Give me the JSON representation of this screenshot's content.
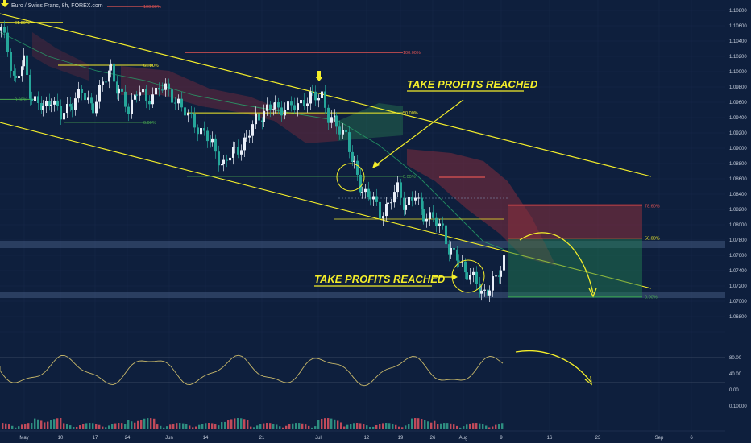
{
  "chart_data": {
    "type": "candlestick",
    "title": "Euro / Swiss Franc, 8h, FOREX.com",
    "y_ticks": [
      "1.10800",
      "1.10600",
      "1.10400",
      "1.10200",
      "1.10000",
      "1.09800",
      "1.09600",
      "1.09400",
      "1.09200",
      "1.09000",
      "1.08800",
      "1.08600",
      "1.08400",
      "1.08200",
      "1.08000",
      "1.07800",
      "1.07600",
      "1.07400",
      "1.07200",
      "1.07000",
      "1.06800"
    ],
    "ylim": [
      1.068,
      1.108
    ],
    "x_ticks": [
      "May",
      "10",
      "17",
      "24",
      "Jun",
      "14",
      "21",
      "Jul",
      "12",
      "19",
      "26",
      "Aug",
      "9",
      "16",
      "23",
      "Sep",
      "6"
    ],
    "oscillator_ticks": [
      "80.00",
      "40.00",
      "0.00"
    ],
    "volume_tick": "0.10000",
    "price_path": [
      [
        0,
        1.1055
      ],
      [
        8,
        1.103
      ],
      [
        18,
        1.099
      ],
      [
        28,
        1.1015
      ],
      [
        38,
        1.097
      ],
      [
        52,
        1.0955
      ],
      [
        62,
        1.097
      ],
      [
        74,
        1.0945
      ],
      [
        88,
        1.0965
      ],
      [
        100,
        1.0975
      ],
      [
        114,
        1.096
      ],
      [
        126,
        1.0985
      ],
      [
        136,
        1.101
      ],
      [
        146,
        1.0975
      ],
      [
        158,
        1.0955
      ],
      [
        168,
        1.098
      ],
      [
        180,
        1.0965
      ],
      [
        196,
        1.0985
      ],
      [
        208,
        1.0975
      ],
      [
        220,
        1.0965
      ],
      [
        232,
        1.0945
      ],
      [
        248,
        1.093
      ],
      [
        262,
        1.091
      ],
      [
        276,
        1.0885
      ],
      [
        290,
        1.0905
      ],
      [
        304,
        1.0915
      ],
      [
        316,
        1.0945
      ],
      [
        326,
        1.095
      ],
      [
        340,
        1.096
      ],
      [
        356,
        1.0955
      ],
      [
        372,
        1.0965
      ],
      [
        386,
        1.097
      ],
      [
        398,
        1.0975
      ],
      [
        406,
        1.0945
      ],
      [
        416,
        1.0935
      ],
      [
        428,
        1.0925
      ],
      [
        438,
        1.088
      ],
      [
        448,
        1.0855
      ],
      [
        458,
        1.0845
      ],
      [
        470,
        1.0825
      ],
      [
        480,
        1.0835
      ],
      [
        492,
        1.0855
      ],
      [
        502,
        1.0835
      ],
      [
        514,
        1.0845
      ],
      [
        524,
        1.0825
      ],
      [
        536,
        1.0815
      ],
      [
        548,
        1.0805
      ],
      [
        558,
        1.0775
      ],
      [
        568,
        1.0765
      ],
      [
        578,
        1.075
      ],
      [
        586,
        1.074
      ],
      [
        596,
        1.0725
      ],
      [
        606,
        1.073
      ],
      [
        614,
        1.074
      ],
      [
        620,
        1.0755
      ],
      [
        626,
        1.0775
      ]
    ],
    "levels": [
      {
        "label": "100.00%",
        "price": 1.1085,
        "color": "#e05353"
      },
      {
        "label": "61.80%",
        "price": 1.1065,
        "color": "#f4ee2a"
      },
      {
        "label": "61.80%",
        "price": 1.1011,
        "color": "#f4ee2a"
      },
      {
        "label": "0.00%",
        "price": 1.0968,
        "color": "#4caf50"
      },
      {
        "label": "0.00%",
        "price": 1.0939,
        "color": "#4caf50"
      },
      {
        "label": "100.00%",
        "price": 1.1027,
        "color": "#e05353"
      },
      {
        "label": "50.00%",
        "price": 1.0951,
        "color": "#f4ee2a"
      },
      {
        "label": "0.00%",
        "price": 1.0871,
        "color": "#4caf50"
      },
      {
        "label": "78.60%",
        "price": 1.0834,
        "color": "#e05353"
      },
      {
        "label": "50.00%",
        "price": 1.0793,
        "color": "#f4ee2a"
      },
      {
        "label": "0.00%",
        "price": 1.0719,
        "color": "#4caf50"
      }
    ],
    "annotations": [
      "TAKE PROFITS REACHED",
      "TAKE PROFITS REACHED"
    ]
  }
}
